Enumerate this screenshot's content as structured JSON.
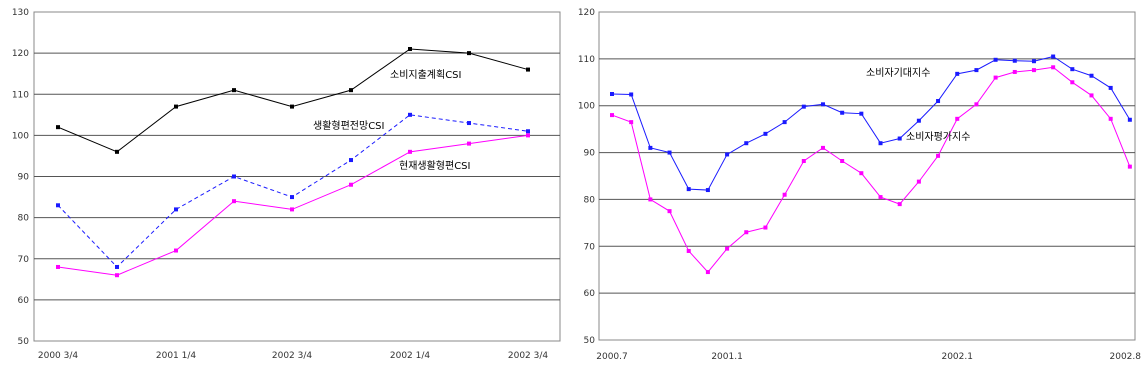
{
  "chart_data": [
    {
      "type": "line",
      "ylim": [
        50,
        130
      ],
      "yticks": [
        "50",
        "60",
        "70",
        "80",
        "90",
        "100",
        "110",
        "120",
        "130"
      ],
      "categories": [
        "2000 3/4",
        "",
        "2001 1/4",
        "",
        "2002 3/4",
        "",
        "2002 1/4",
        "",
        "2002 3/4"
      ],
      "xtick_labels": [
        "2000 3/4",
        "2001 1/4",
        "2002 3/4",
        "2002 1/4",
        "2002 3/4"
      ],
      "grid": true,
      "series": [
        {
          "name": "소비지출계획CSI",
          "color": "#000000",
          "style": "solid",
          "marker": "square",
          "values": [
            102,
            96,
            107,
            111,
            107,
            111,
            121,
            120,
            116
          ]
        },
        {
          "name": "생활형편전망CSI",
          "color": "#1a1aff",
          "style": "dashed",
          "marker": "square",
          "values": [
            83,
            68,
            82,
            90,
            85,
            94,
            105,
            103,
            101
          ]
        },
        {
          "name": "현재생활형편CSI",
          "color": "#ff00ff",
          "style": "solid",
          "marker": "square",
          "values": [
            68,
            66,
            72,
            84,
            82,
            88,
            96,
            98,
            100
          ]
        }
      ]
    },
    {
      "type": "line",
      "ylim": [
        50,
        120
      ],
      "yticks": [
        "50",
        "60",
        "70",
        "80",
        "90",
        "100",
        "110",
        "120"
      ],
      "xtick_labels": [
        "2000.7",
        "2001.1",
        "2002.1",
        "2002.8"
      ],
      "grid": true,
      "series": [
        {
          "name": "소비자기대지수",
          "color": "#1a1aff",
          "style": "solid",
          "marker": "square",
          "values": [
            102.5,
            102.4,
            91,
            90,
            82.2,
            82,
            89.6,
            92,
            94,
            96.5,
            99.8,
            100.3,
            98.5,
            98.3,
            92,
            93,
            96.8,
            101,
            106.8,
            107.6,
            109.8,
            109.6,
            109.5,
            110.5,
            107.8,
            106.4,
            103.8,
            97
          ]
        },
        {
          "name": "소비자평가지수",
          "color": "#ff00ff",
          "style": "solid",
          "marker": "square",
          "values": [
            98,
            96.5,
            80,
            77.5,
            69,
            64.5,
            69.5,
            73,
            74,
            81,
            88.2,
            91,
            88.2,
            85.6,
            80.5,
            79,
            83.8,
            89.3,
            97.2,
            100.3,
            106,
            107.2,
            107.6,
            108.2,
            105,
            102.2,
            97.2,
            87
          ]
        }
      ]
    }
  ]
}
